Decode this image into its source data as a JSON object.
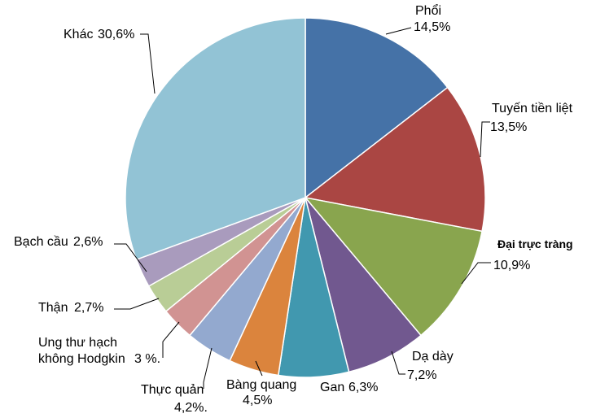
{
  "chart_data": {
    "type": "pie",
    "title": "",
    "slices": [
      {
        "label": "Phổi",
        "value_text": "14,5%",
        "value": 14.5,
        "color": "#4572A7"
      },
      {
        "label": "Tuyến tiền liệt",
        "value_text": "13,5%",
        "value": 13.5,
        "color": "#AA4643"
      },
      {
        "label": "Đại trực tràng",
        "value_text": "10,9%",
        "value": 10.9,
        "color": "#89A54E"
      },
      {
        "label": "Dạ dày",
        "value_text": "7,2%",
        "value": 7.2,
        "color": "#71588F"
      },
      {
        "label": "Gan",
        "value_text": "6,3%",
        "value": 6.3,
        "color": "#4198AF"
      },
      {
        "label": "Bàng quang",
        "value_text": "4,5%",
        "value": 4.5,
        "color": "#DB843D"
      },
      {
        "label": "Thực quản",
        "value_text": "4,2%.",
        "value": 4.2,
        "color": "#93A9CF"
      },
      {
        "label": "Ung thư hạch không Hodgkin",
        "label_line1": "Ung thư hạch",
        "label_line2": "không Hodgkin",
        "value_text": "3 %.",
        "value": 3.0,
        "color": "#D19392"
      },
      {
        "label": "Thận",
        "value_text": "2,7%",
        "value": 2.7,
        "color": "#B9CD96"
      },
      {
        "label": "Bạch cầu",
        "value_text": "2,6%",
        "value": 2.6,
        "color": "#A99BBD"
      },
      {
        "label": "Khác",
        "value_text": "30,6%",
        "value": 30.6,
        "color": "#92C3D5"
      }
    ]
  }
}
